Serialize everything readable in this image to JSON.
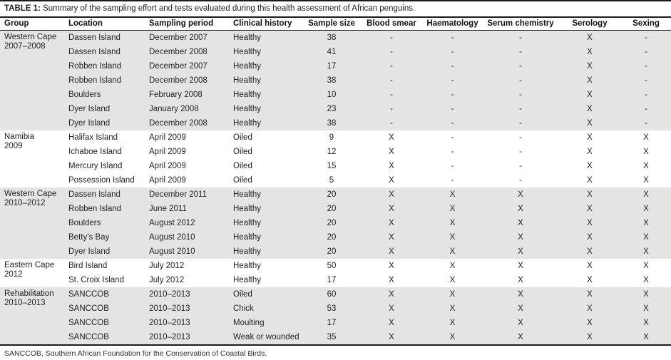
{
  "caption": {
    "label": "TABLE 1:",
    "text": "Summary of the sampling effort and tests evaluated during this health assessment of African penguins."
  },
  "colors": {
    "band_shaded": "#e4e4e2",
    "band_plain": "#ffffff",
    "rule": "#1b1b1b",
    "text": "#232323"
  },
  "table": {
    "columns": [
      "Group",
      "Location",
      "Sampling period",
      "Clinical history",
      "Sample size",
      "Blood smear",
      "Haematology",
      "Serum chemistry",
      "Serology",
      "Sexing"
    ],
    "column_keys": [
      "group",
      "location",
      "sampling-period",
      "clinical-history",
      "sample-size",
      "blood-smear",
      "haematology",
      "serum-chemistry",
      "serology",
      "sexing"
    ],
    "groups": [
      {
        "name": "Western Cape",
        "period": "2007–2008",
        "shaded": true,
        "rows": [
          [
            "Dassen Island",
            "December 2007",
            "Healthy",
            "38",
            "-",
            "-",
            "-",
            "X",
            "-"
          ],
          [
            "Dassen Island",
            "December 2008",
            "Healthy",
            "41",
            "-",
            "-",
            "-",
            "X",
            "-"
          ],
          [
            "Robben Island",
            "December 2007",
            "Healthy",
            "17",
            "-",
            "-",
            "-",
            "X",
            "-"
          ],
          [
            "Robben Island",
            "December 2008",
            "Healthy",
            "38",
            "-",
            "-",
            "-",
            "X",
            "-"
          ],
          [
            "Boulders",
            "February 2008",
            "Healthy",
            "10",
            "-",
            "-",
            "-",
            "X",
            "-"
          ],
          [
            "Dyer Island",
            "January 2008",
            "Healthy",
            "23",
            "-",
            "-",
            "-",
            "X",
            "-"
          ],
          [
            "Dyer Island",
            "December 2008",
            "Healthy",
            "38",
            "-",
            "-",
            "-",
            "X",
            "-"
          ]
        ]
      },
      {
        "name": "Namibia",
        "period": "2009",
        "shaded": false,
        "rows": [
          [
            "Halifax Island",
            "April 2009",
            "Oiled",
            "9",
            "X",
            "-",
            "-",
            "X",
            "X"
          ],
          [
            "Ichaboe Island",
            "April 2009",
            "Oiled",
            "12",
            "X",
            "-",
            "-",
            "X",
            "X"
          ],
          [
            "Mercury Island",
            "April 2009",
            "Oiled",
            "15",
            "X",
            "-",
            "-",
            "X",
            "X"
          ],
          [
            "Possession Island",
            "April 2009",
            "Oiled",
            "5",
            "X",
            "-",
            "-",
            "X",
            "X"
          ]
        ]
      },
      {
        "name": "Western Cape",
        "period": "2010–2012",
        "shaded": true,
        "rows": [
          [
            "Dassen Island",
            "December 2011",
            "Healthy",
            "20",
            "X",
            "X",
            "X",
            "X",
            "X"
          ],
          [
            "Robben Island",
            "June 2011",
            "Healthy",
            "20",
            "X",
            "X",
            "X",
            "X",
            "X"
          ],
          [
            "Boulders",
            "August 2012",
            "Healthy",
            "20",
            "X",
            "X",
            "X",
            "X",
            "X"
          ],
          [
            "Betty’s Bay",
            "August 2010",
            "Healthy",
            "20",
            "X",
            "X",
            "X",
            "X",
            "X"
          ],
          [
            "Dyer Island",
            "August 2010",
            "Healthy",
            "20",
            "X",
            "X",
            "X",
            "X",
            "X"
          ]
        ]
      },
      {
        "name": "Eastern Cape",
        "period": "2012",
        "shaded": false,
        "rows": [
          [
            "Bird Island",
            "July 2012",
            "Healthy",
            "50",
            "X",
            "X",
            "X",
            "X",
            "X"
          ],
          [
            "St. Croix Island",
            "July 2012",
            "Healthy",
            "17",
            "X",
            "X",
            "X",
            "X",
            "X"
          ]
        ]
      },
      {
        "name": "Rehabilitation",
        "period": "2010–2013",
        "shaded": true,
        "rows": [
          [
            "SANCCOB",
            "2010–2013",
            "Oiled",
            "60",
            "X",
            "X",
            "X",
            "X",
            "X"
          ],
          [
            "SANCCOB",
            "2010–2013",
            "Chick",
            "53",
            "X",
            "X",
            "X",
            "X",
            "X"
          ],
          [
            "SANCCOB",
            "2010–2013",
            "Moulting",
            "17",
            "X",
            "X",
            "X",
            "X",
            "X"
          ],
          [
            "SANCCOB",
            "2010–2013",
            "Weak or wounded",
            "35",
            "X",
            "X",
            "X",
            "X",
            "X"
          ]
        ]
      }
    ]
  },
  "footnote": "SANCCOB, Southern African Foundation for the Conservation of Coastal Birds."
}
